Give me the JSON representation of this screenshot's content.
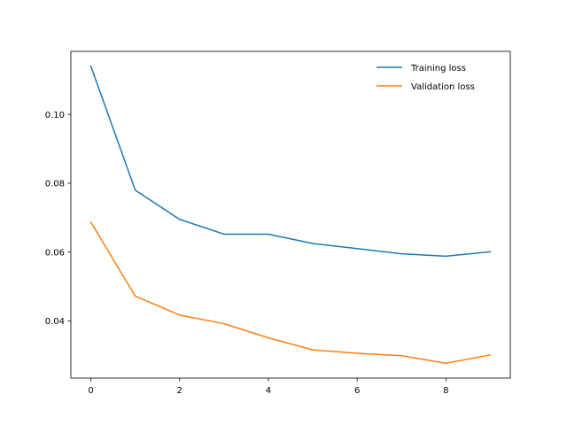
{
  "chart_data": {
    "type": "line",
    "x": [
      0,
      1,
      2,
      3,
      4,
      5,
      6,
      7,
      8,
      9
    ],
    "series": [
      {
        "name": "Training loss",
        "color": "#1f77b4",
        "values": [
          0.114,
          0.078,
          0.0695,
          0.0652,
          0.0652,
          0.0625,
          0.061,
          0.0595,
          0.0588,
          0.0601
        ]
      },
      {
        "name": "Validation loss",
        "color": "#ff7f0e",
        "values": [
          0.0687,
          0.0472,
          0.0417,
          0.0392,
          0.0351,
          0.0316,
          0.0306,
          0.0299,
          0.0277,
          0.0301
        ]
      }
    ],
    "xlim": [
      -0.45,
      9.45
    ],
    "ylim": [
      0.0234,
      0.1183
    ],
    "xticks": [
      0,
      2,
      4,
      6,
      8
    ],
    "yticks": [
      0.04,
      0.06,
      0.08,
      0.1
    ],
    "xtick_labels": [
      "0",
      "2",
      "4",
      "6",
      "8"
    ],
    "ytick_labels": [
      "0.04",
      "0.06",
      "0.08",
      "0.10"
    ],
    "title": "",
    "xlabel": "",
    "ylabel": "",
    "grid": false,
    "legend_position": "top-right"
  }
}
